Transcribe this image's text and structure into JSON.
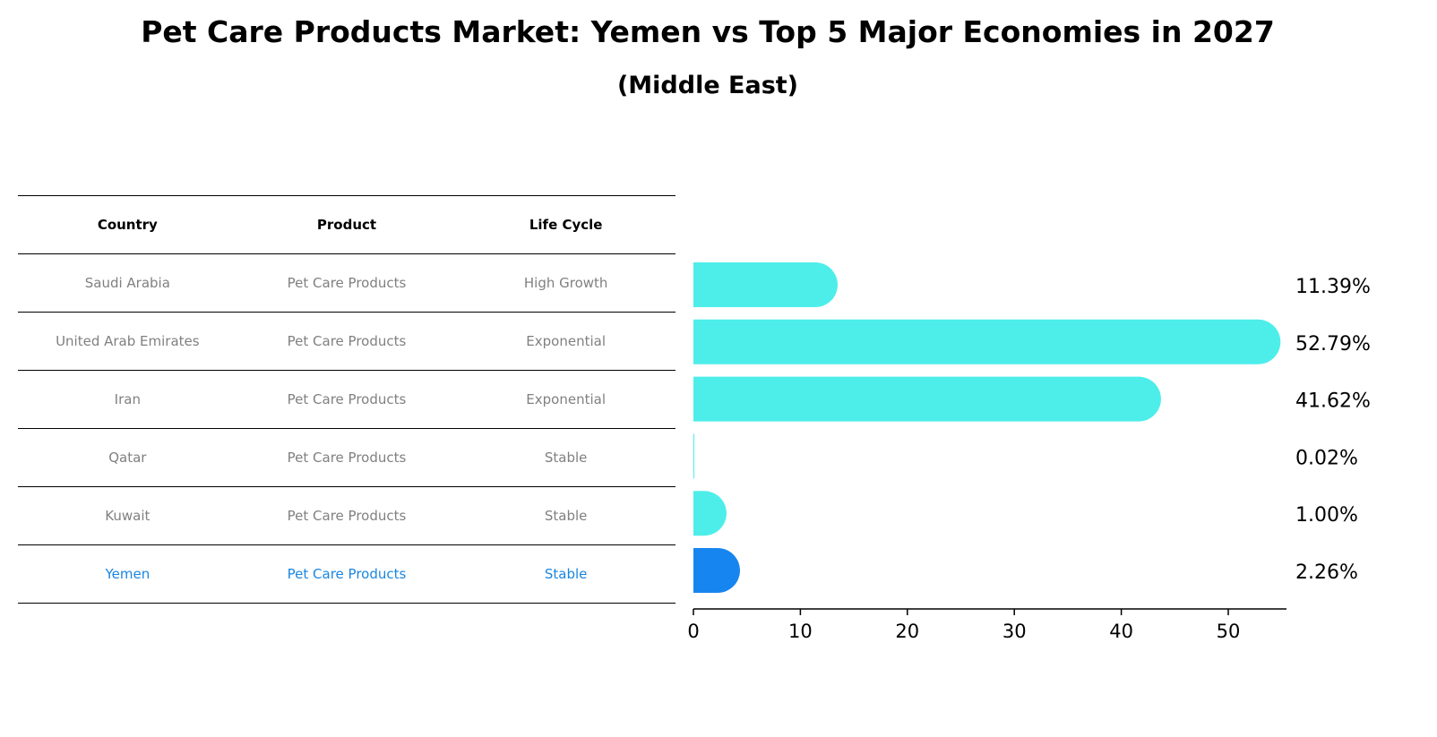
{
  "title": "Pet Care Products Market: Yemen vs Top 5 Major Economies in 2027",
  "subtitle": "(Middle East)",
  "table": {
    "headers": [
      "Country",
      "Product",
      "Life Cycle"
    ],
    "rows": [
      [
        "Saudi Arabia",
        "Pet Care Products",
        "High Growth"
      ],
      [
        "United Arab Emirates",
        "Pet Care Products",
        "Exponential"
      ],
      [
        "Iran",
        "Pet Care Products",
        "Exponential"
      ],
      [
        "Qatar",
        "Pet Care Products",
        "Stable"
      ],
      [
        "Kuwait",
        "Pet Care Products",
        "Stable"
      ],
      [
        "Yemen",
        "Pet Care Products",
        "Stable"
      ]
    ],
    "highlight_row": 5
  },
  "chart_data": {
    "type": "bar",
    "orientation": "horizontal",
    "categories": [
      "Saudi Arabia",
      "United Arab Emirates",
      "Iran",
      "Qatar",
      "Kuwait",
      "Yemen"
    ],
    "values": [
      11.39,
      52.79,
      41.62,
      0.02,
      1.0,
      2.26
    ],
    "labels": [
      "11.39%",
      "52.79%",
      "41.62%",
      "0.02%",
      "1.00%",
      "2.26%"
    ],
    "xticks": [
      0,
      10,
      20,
      30,
      40,
      50
    ],
    "xlim": [
      0,
      55.4
    ],
    "colors": {
      "default": "#4deeea",
      "highlight": "#1785f0"
    },
    "highlight": "Yemen",
    "grid": false
  }
}
